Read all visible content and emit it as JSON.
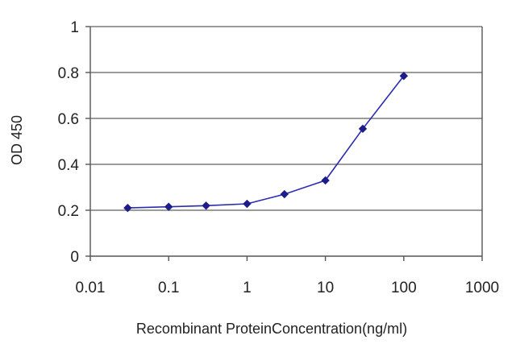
{
  "chart_data": {
    "type": "line",
    "xlabel": "Recombinant ProteinConcentration(ng/ml)",
    "ylabel": "OD 450",
    "x_scale": "log",
    "xlim": [
      0.01,
      1000
    ],
    "ylim": [
      0,
      1
    ],
    "x_ticks": [
      0.01,
      0.1,
      1,
      10,
      100,
      1000
    ],
    "x_tick_labels": [
      "0.01",
      "0.1",
      "1",
      "10",
      "100",
      "1000"
    ],
    "y_ticks": [
      0,
      0.2,
      0.4,
      0.6,
      0.8,
      1
    ],
    "y_tick_labels": [
      "0",
      "0.2",
      "0.4",
      "0.6",
      "0.8",
      "1"
    ],
    "grid": "horizontal",
    "legend": "none",
    "series": [
      {
        "x": [
          0.03,
          0.1,
          0.3,
          1,
          3,
          10,
          30,
          100
        ],
        "y": [
          0.21,
          0.215,
          0.22,
          0.228,
          0.27,
          0.33,
          0.555,
          0.785
        ],
        "color": "#2b2bb0",
        "marker": "diamond"
      }
    ],
    "colors": {
      "line": "#2b2bb0",
      "marker": "#1c1c8c",
      "grid": "#7a7a7a",
      "axis": "#555555"
    }
  }
}
